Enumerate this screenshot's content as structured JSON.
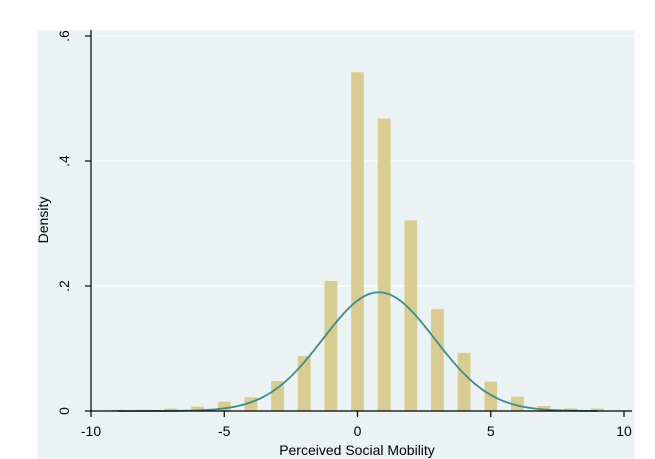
{
  "chart_data": {
    "type": "bar",
    "xlabel": "Perceived Social Mobility",
    "ylabel": "Density",
    "xlim": [
      -10,
      10
    ],
    "ylim": [
      0,
      0.6
    ],
    "x_ticks": [
      -10,
      -5,
      0,
      5,
      10
    ],
    "x_tick_labels": [
      "-10",
      "-5",
      "0",
      "5",
      "10"
    ],
    "y_ticks": [
      0,
      0.2,
      0.4,
      0.6
    ],
    "y_tick_labels": [
      "0",
      ".2",
      ".4",
      ".6"
    ],
    "grid": true,
    "series": [
      {
        "type": "bar",
        "x": [
          -9,
          -8,
          -7,
          -6,
          -5,
          -4,
          -3,
          -2,
          -1,
          0,
          1,
          2,
          3,
          4,
          5,
          6,
          7,
          8,
          9
        ],
        "values": [
          0.002,
          0.002,
          0.004,
          0.007,
          0.015,
          0.022,
          0.048,
          0.088,
          0.208,
          0.542,
          0.468,
          0.305,
          0.163,
          0.093,
          0.047,
          0.023,
          0.008,
          0.004,
          0.004
        ]
      },
      {
        "type": "line",
        "mean": 0.8,
        "sd": 2.1
      }
    ],
    "colors": {
      "bars": "#d8cc92",
      "curve": "#3f8c8a",
      "plot_background": "#eaf2f3",
      "grid": "#ffffff"
    }
  }
}
